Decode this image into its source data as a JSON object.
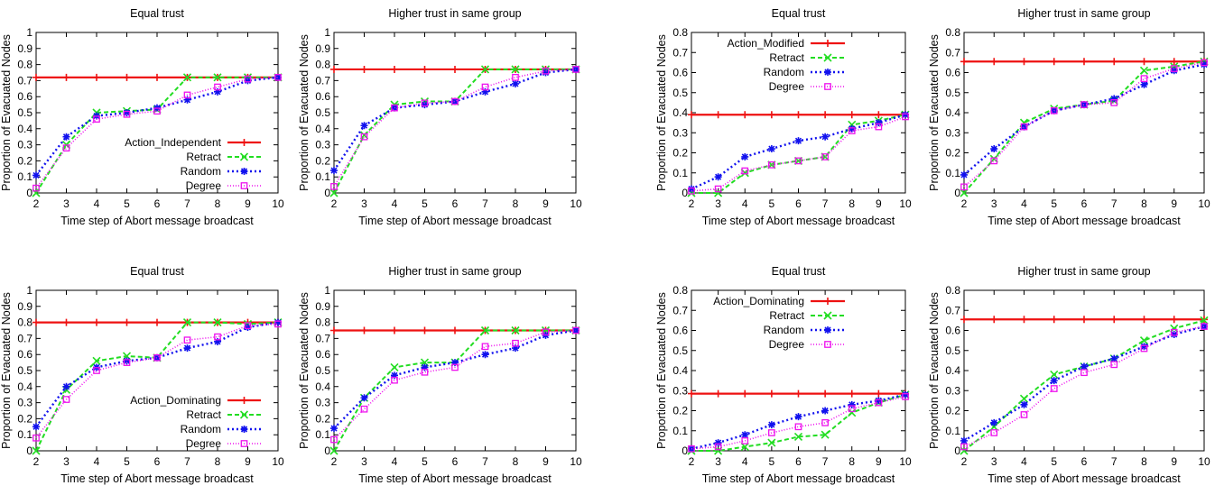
{
  "figure": {
    "xlabel": "Time step of Abort message broadcast",
    "ylabel": "Proportion of Evacuated Nodes"
  },
  "colors": {
    "action": "#ee1111",
    "retract": "#22dd22",
    "random": "#1111ee",
    "degree": "#ee11ee"
  },
  "chart_data": [
    {
      "type": "line",
      "title": "Equal trust",
      "xlabel": "Time step of Abort message broadcast",
      "ylabel": "Proportion of Evacuated Nodes",
      "x": [
        2,
        3,
        4,
        5,
        6,
        7,
        8,
        9,
        10
      ],
      "xlim": [
        2,
        10
      ],
      "ylim": [
        0,
        1
      ],
      "yticks": [
        "0",
        "0.1",
        "0.2",
        "0.3",
        "0.4",
        "0.5",
        "0.6",
        "0.7",
        "0.8",
        "0.9",
        "1"
      ],
      "legend": "bottom-right",
      "grid": false,
      "series": [
        {
          "name": "Action_Independent",
          "key": "action",
          "values": [
            0.72,
            0.72,
            0.72,
            0.72,
            0.72,
            0.72,
            0.72,
            0.72,
            0.72
          ]
        },
        {
          "name": "Retract",
          "key": "retract",
          "values": [
            0.0,
            0.3,
            0.5,
            0.51,
            0.52,
            0.72,
            0.72,
            0.72,
            0.72
          ]
        },
        {
          "name": "Random",
          "key": "random",
          "values": [
            0.11,
            0.35,
            0.48,
            0.5,
            0.53,
            0.58,
            0.63,
            0.7,
            0.72
          ]
        },
        {
          "name": "Degree",
          "key": "degree",
          "values": [
            0.03,
            0.28,
            0.46,
            0.49,
            0.51,
            0.61,
            0.66,
            0.71,
            0.72
          ]
        }
      ]
    },
    {
      "type": "line",
      "title": "Higher trust in same group",
      "xlabel": "Time step of Abort message broadcast",
      "ylabel": "Proportion of Evacuated Nodes",
      "x": [
        2,
        3,
        4,
        5,
        6,
        7,
        8,
        9,
        10
      ],
      "xlim": [
        2,
        10
      ],
      "ylim": [
        0,
        1
      ],
      "yticks": [
        "0",
        "0.1",
        "0.2",
        "0.3",
        "0.4",
        "0.5",
        "0.6",
        "0.7",
        "0.8",
        "0.9",
        "1"
      ],
      "legend": "none",
      "grid": false,
      "series": [
        {
          "key": "action",
          "values": [
            0.77,
            0.77,
            0.77,
            0.77,
            0.77,
            0.77,
            0.77,
            0.77,
            0.77
          ]
        },
        {
          "key": "retract",
          "values": [
            0.0,
            0.36,
            0.55,
            0.57,
            0.57,
            0.77,
            0.77,
            0.77,
            0.77
          ]
        },
        {
          "key": "random",
          "values": [
            0.14,
            0.42,
            0.53,
            0.55,
            0.57,
            0.63,
            0.68,
            0.75,
            0.77
          ]
        },
        {
          "key": "degree",
          "values": [
            0.04,
            0.35,
            0.53,
            0.56,
            0.57,
            0.66,
            0.72,
            0.76,
            0.77
          ]
        }
      ]
    },
    {
      "type": "line",
      "title": "Equal trust",
      "xlabel": "Time step of Abort message broadcast",
      "ylabel": "Proportion of Evacuated Nodes",
      "x": [
        2,
        3,
        4,
        5,
        6,
        7,
        8,
        9,
        10
      ],
      "xlim": [
        2,
        10
      ],
      "ylim": [
        0,
        0.8
      ],
      "yticks": [
        "0",
        "0.1",
        "0.2",
        "0.3",
        "0.4",
        "0.5",
        "0.6",
        "0.7",
        "0.8"
      ],
      "legend": "top-left",
      "grid": false,
      "series": [
        {
          "name": "Action_Modified",
          "key": "action",
          "values": [
            0.39,
            0.39,
            0.39,
            0.39,
            0.39,
            0.39,
            0.39,
            0.39,
            0.39
          ]
        },
        {
          "name": "Retract",
          "key": "retract",
          "values": [
            0.0,
            0.0,
            0.1,
            0.14,
            0.16,
            0.18,
            0.34,
            0.36,
            0.39
          ]
        },
        {
          "name": "Random",
          "key": "random",
          "values": [
            0.02,
            0.08,
            0.18,
            0.22,
            0.26,
            0.28,
            0.32,
            0.35,
            0.39
          ]
        },
        {
          "name": "Degree",
          "key": "degree",
          "values": [
            0.01,
            0.02,
            0.11,
            0.14,
            0.16,
            0.18,
            0.31,
            0.33,
            0.38
          ]
        }
      ]
    },
    {
      "type": "line",
      "title": "Higher trust in same group",
      "xlabel": "Time step of Abort message broadcast",
      "ylabel": "Proportion of Evacuated Nodes",
      "x": [
        2,
        3,
        4,
        5,
        6,
        7,
        8,
        9,
        10
      ],
      "xlim": [
        2,
        10
      ],
      "ylim": [
        0,
        0.8
      ],
      "yticks": [
        "0",
        "0.1",
        "0.2",
        "0.3",
        "0.4",
        "0.5",
        "0.6",
        "0.7",
        "0.8"
      ],
      "legend": "none",
      "grid": false,
      "series": [
        {
          "key": "action",
          "values": [
            0.655,
            0.655,
            0.655,
            0.655,
            0.655,
            0.655,
            0.655,
            0.655,
            0.655
          ]
        },
        {
          "key": "retract",
          "values": [
            0.0,
            0.17,
            0.35,
            0.42,
            0.44,
            0.46,
            0.61,
            0.63,
            0.655
          ]
        },
        {
          "key": "random",
          "values": [
            0.09,
            0.22,
            0.33,
            0.41,
            0.44,
            0.47,
            0.54,
            0.61,
            0.64
          ]
        },
        {
          "key": "degree",
          "values": [
            0.03,
            0.16,
            0.33,
            0.41,
            0.44,
            0.45,
            0.57,
            0.62,
            0.65
          ]
        }
      ]
    },
    {
      "type": "line",
      "title": "Equal trust",
      "xlabel": "Time step of Abort message broadcast",
      "ylabel": "Proportion of Evacuated Nodes",
      "x": [
        2,
        3,
        4,
        5,
        6,
        7,
        8,
        9,
        10
      ],
      "xlim": [
        2,
        10
      ],
      "ylim": [
        0,
        1
      ],
      "yticks": [
        "0",
        "0.1",
        "0.2",
        "0.3",
        "0.4",
        "0.5",
        "0.6",
        "0.7",
        "0.8",
        "0.9",
        "1"
      ],
      "legend": "bottom-right",
      "grid": false,
      "series": [
        {
          "name": "Action_Dominating",
          "key": "action",
          "values": [
            0.8,
            0.8,
            0.8,
            0.8,
            0.8,
            0.8,
            0.8,
            0.8,
            0.8
          ]
        },
        {
          "name": "Retract",
          "key": "retract",
          "values": [
            0.0,
            0.38,
            0.56,
            0.59,
            0.58,
            0.8,
            0.8,
            0.79,
            0.8
          ]
        },
        {
          "name": "Random",
          "key": "random",
          "values": [
            0.15,
            0.4,
            0.52,
            0.56,
            0.58,
            0.64,
            0.68,
            0.77,
            0.8
          ]
        },
        {
          "name": "Degree",
          "key": "degree",
          "values": [
            0.08,
            0.32,
            0.5,
            0.55,
            0.58,
            0.69,
            0.71,
            0.78,
            0.79
          ]
        }
      ]
    },
    {
      "type": "line",
      "title": "Higher trust in same group",
      "xlabel": "Time step of Abort message broadcast",
      "ylabel": "Proportion of Evacuated Nodes",
      "x": [
        2,
        3,
        4,
        5,
        6,
        7,
        8,
        9,
        10
      ],
      "xlim": [
        2,
        10
      ],
      "ylim": [
        0,
        1
      ],
      "yticks": [
        "0",
        "0.1",
        "0.2",
        "0.3",
        "0.4",
        "0.5",
        "0.6",
        "0.7",
        "0.8",
        "0.9",
        "1"
      ],
      "legend": "none",
      "grid": false,
      "series": [
        {
          "key": "action",
          "values": [
            0.75,
            0.75,
            0.75,
            0.75,
            0.75,
            0.75,
            0.75,
            0.75,
            0.75
          ]
        },
        {
          "key": "retract",
          "values": [
            0.0,
            0.33,
            0.52,
            0.55,
            0.55,
            0.75,
            0.75,
            0.75,
            0.75
          ]
        },
        {
          "key": "random",
          "values": [
            0.14,
            0.33,
            0.47,
            0.52,
            0.55,
            0.6,
            0.64,
            0.72,
            0.75
          ]
        },
        {
          "key": "degree",
          "values": [
            0.07,
            0.26,
            0.44,
            0.49,
            0.52,
            0.65,
            0.67,
            0.74,
            0.75
          ]
        }
      ]
    },
    {
      "type": "line",
      "title": "Equal trust",
      "xlabel": "Time step of Abort message broadcast",
      "ylabel": "Proportion of Evacuated Nodes",
      "x": [
        2,
        3,
        4,
        5,
        6,
        7,
        8,
        9,
        10
      ],
      "xlim": [
        2,
        10
      ],
      "ylim": [
        0,
        0.8
      ],
      "yticks": [
        "0",
        "0.1",
        "0.2",
        "0.3",
        "0.4",
        "0.5",
        "0.6",
        "0.7",
        "0.8"
      ],
      "legend": "top-left",
      "grid": false,
      "series": [
        {
          "name": "Action_Dominating",
          "key": "action",
          "values": [
            0.285,
            0.285,
            0.285,
            0.285,
            0.285,
            0.285,
            0.285,
            0.285,
            0.285
          ]
        },
        {
          "name": "Retract",
          "key": "retract",
          "values": [
            0.0,
            0.0,
            0.02,
            0.04,
            0.07,
            0.08,
            0.19,
            0.24,
            0.28
          ]
        },
        {
          "name": "Random",
          "key": "random",
          "values": [
            0.01,
            0.04,
            0.08,
            0.13,
            0.17,
            0.2,
            0.23,
            0.25,
            0.28
          ]
        },
        {
          "name": "Degree",
          "key": "degree",
          "values": [
            0.01,
            0.02,
            0.05,
            0.09,
            0.12,
            0.14,
            0.21,
            0.24,
            0.27
          ]
        }
      ]
    },
    {
      "type": "line",
      "title": "Higher trust in same group",
      "xlabel": "Time step of Abort message broadcast",
      "ylabel": "Proportion of Evacuated Nodes",
      "x": [
        2,
        3,
        4,
        5,
        6,
        7,
        8,
        9,
        10
      ],
      "xlim": [
        2,
        10
      ],
      "ylim": [
        0,
        0.8
      ],
      "yticks": [
        "0",
        "0.1",
        "0.2",
        "0.3",
        "0.4",
        "0.5",
        "0.6",
        "0.7",
        "0.8"
      ],
      "legend": "none",
      "grid": false,
      "series": [
        {
          "key": "action",
          "values": [
            0.655,
            0.655,
            0.655,
            0.655,
            0.655,
            0.655,
            0.655,
            0.655,
            0.655
          ]
        },
        {
          "key": "retract",
          "values": [
            0.0,
            0.12,
            0.26,
            0.38,
            0.42,
            0.46,
            0.55,
            0.61,
            0.65
          ]
        },
        {
          "key": "random",
          "values": [
            0.05,
            0.14,
            0.23,
            0.35,
            0.42,
            0.46,
            0.52,
            0.58,
            0.62
          ]
        },
        {
          "key": "degree",
          "values": [
            0.02,
            0.09,
            0.18,
            0.31,
            0.39,
            0.43,
            0.51,
            0.59,
            0.62
          ]
        }
      ]
    }
  ]
}
